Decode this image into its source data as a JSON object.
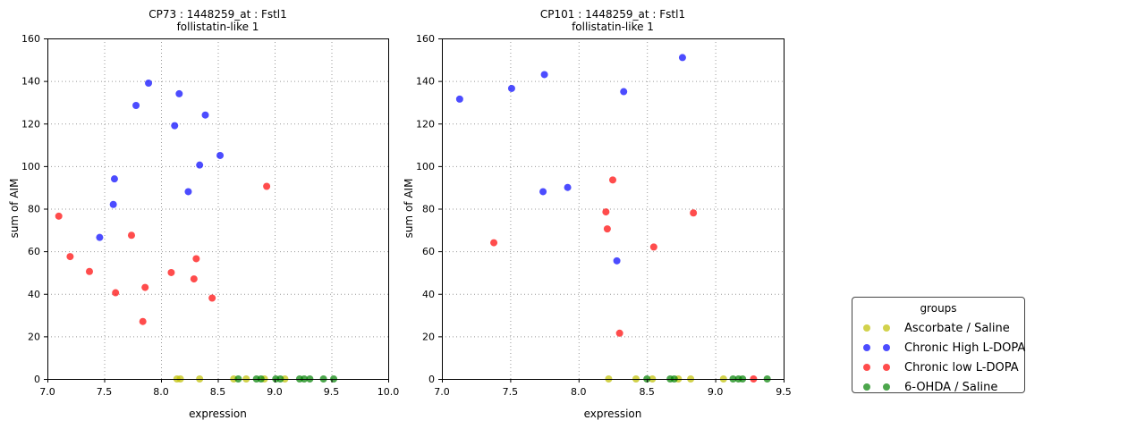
{
  "figure": {
    "background": "#ffffff",
    "legend": {
      "title": "groups",
      "items": [
        {
          "label": "Ascorbate / Saline",
          "color": "#bfbf00"
        },
        {
          "label": "Chronic High L-DOPA",
          "color": "#0000ff"
        },
        {
          "label": "Chronic low L-DOPA",
          "color": "#ff0000"
        },
        {
          "label": "6-OHDA / Saline",
          "color": "#008000"
        }
      ]
    }
  },
  "chart_data": [
    {
      "type": "scatter",
      "title": "CP73 : 1448259_at : Fstl1",
      "subtitle": "follistatin-like 1",
      "xlabel": "expression",
      "ylabel": "sum of AIM",
      "xlim": [
        7.0,
        10.0
      ],
      "ylim": [
        0,
        160
      ],
      "xtick_labels": [
        "7.0",
        "7.5",
        "8.0",
        "8.5",
        "9.0",
        "9.5",
        "10.0"
      ],
      "xticks": [
        7.0,
        7.5,
        8.0,
        8.5,
        9.0,
        9.5,
        10.0
      ],
      "ytick_labels": [
        "0",
        "20",
        "40",
        "60",
        "80",
        "100",
        "120",
        "140",
        "160"
      ],
      "yticks": [
        0,
        20,
        40,
        60,
        80,
        100,
        120,
        140,
        160
      ],
      "grid": true,
      "marker_alpha": 0.7,
      "series": [
        {
          "name": "Ascorbate / Saline",
          "color": "#bfbf00",
          "points": [
            [
              8.14,
              0
            ],
            [
              8.17,
              0
            ],
            [
              8.34,
              0
            ],
            [
              8.64,
              0
            ],
            [
              8.75,
              0
            ],
            [
              8.91,
              0
            ],
            [
              9.09,
              0
            ]
          ]
        },
        {
          "name": "Chronic High L-DOPA",
          "color": "#0000ff",
          "points": [
            [
              7.89,
              139
            ],
            [
              8.16,
              134
            ],
            [
              7.78,
              128.5
            ],
            [
              8.39,
              124
            ],
            [
              8.12,
              119
            ],
            [
              8.52,
              105
            ],
            [
              8.34,
              100.5
            ],
            [
              7.59,
              94
            ],
            [
              8.24,
              88
            ],
            [
              7.58,
              82
            ],
            [
              7.46,
              66.5
            ]
          ]
        },
        {
          "name": "Chronic low L-DOPA",
          "color": "#ff0000",
          "points": [
            [
              7.1,
              76.5
            ],
            [
              8.93,
              90.5
            ],
            [
              7.74,
              67.5
            ],
            [
              7.2,
              57.5
            ],
            [
              8.31,
              56.5
            ],
            [
              7.37,
              50.5
            ],
            [
              8.09,
              50
            ],
            [
              8.29,
              47
            ],
            [
              7.86,
              43
            ],
            [
              7.6,
              40.5
            ],
            [
              8.45,
              38
            ],
            [
              7.84,
              27
            ]
          ]
        },
        {
          "name": "6-OHDA / Saline",
          "color": "#008000",
          "points": [
            [
              8.68,
              0
            ],
            [
              8.84,
              0
            ],
            [
              8.88,
              0
            ],
            [
              9.01,
              0
            ],
            [
              9.05,
              0
            ],
            [
              9.22,
              0
            ],
            [
              9.26,
              0
            ],
            [
              9.31,
              0
            ],
            [
              9.43,
              0
            ],
            [
              9.52,
              0
            ]
          ]
        }
      ]
    },
    {
      "type": "scatter",
      "title": "CP101 : 1448259_at : Fstl1",
      "subtitle": "follistatin-like 1",
      "xlabel": "expression",
      "ylabel": "sum of AIM",
      "xlim": [
        7.0,
        9.5
      ],
      "ylim": [
        0,
        160
      ],
      "xtick_labels": [
        "7.0",
        "7.5",
        "8.0",
        "8.5",
        "9.0",
        "9.5"
      ],
      "xticks": [
        7.0,
        7.5,
        8.0,
        8.5,
        9.0,
        9.5
      ],
      "ytick_labels": [
        "0",
        "20",
        "40",
        "60",
        "80",
        "100",
        "120",
        "140",
        "160"
      ],
      "yticks": [
        0,
        20,
        40,
        60,
        80,
        100,
        120,
        140,
        160
      ],
      "grid": true,
      "marker_alpha": 0.7,
      "series": [
        {
          "name": "Ascorbate / Saline",
          "color": "#bfbf00",
          "points": [
            [
              8.22,
              0
            ],
            [
              8.42,
              0
            ],
            [
              8.54,
              0
            ],
            [
              8.73,
              0
            ],
            [
              8.82,
              0
            ],
            [
              9.06,
              0
            ]
          ]
        },
        {
          "name": "Chronic High L-DOPA",
          "color": "#0000ff",
          "points": [
            [
              8.76,
              151
            ],
            [
              7.75,
              143
            ],
            [
              7.51,
              136.5
            ],
            [
              8.33,
              135
            ],
            [
              7.13,
              131.5
            ],
            [
              7.92,
              90
            ],
            [
              7.74,
              88
            ],
            [
              8.28,
              55.5
            ]
          ]
        },
        {
          "name": "Chronic low L-DOPA",
          "color": "#ff0000",
          "points": [
            [
              8.25,
              93.5
            ],
            [
              8.2,
              78.5
            ],
            [
              8.84,
              78
            ],
            [
              8.21,
              70.5
            ],
            [
              7.38,
              64
            ],
            [
              8.55,
              62
            ],
            [
              8.3,
              21.5
            ],
            [
              9.28,
              0
            ]
          ]
        },
        {
          "name": "6-OHDA / Saline",
          "color": "#008000",
          "points": [
            [
              8.5,
              0
            ],
            [
              8.67,
              0
            ],
            [
              8.7,
              0
            ],
            [
              9.13,
              0
            ],
            [
              9.17,
              0
            ],
            [
              9.2,
              0
            ],
            [
              9.38,
              0
            ]
          ]
        }
      ]
    }
  ]
}
